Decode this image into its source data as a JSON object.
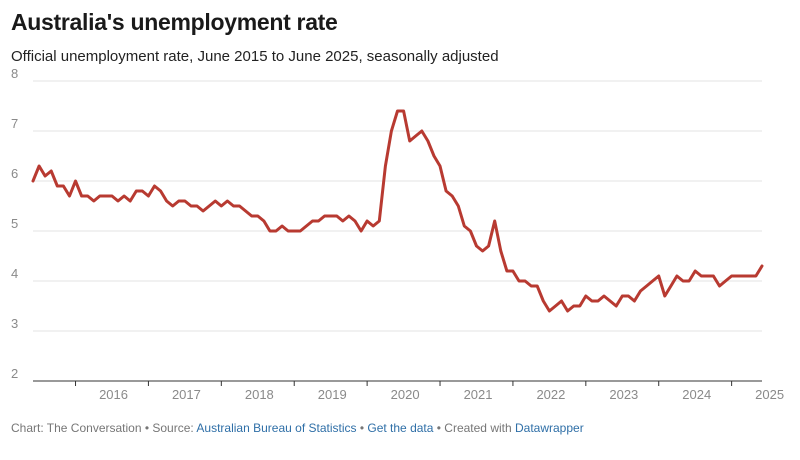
{
  "header": {
    "title": "Australia's unemployment rate",
    "subtitle": "Official unemployment rate, June 2015 to June 2025, seasonally adjusted"
  },
  "footer": {
    "chart_prefix": "Chart: The Conversation • Source: ",
    "source_link": "Australian Bureau of Statistics",
    "sep1": " • ",
    "data_link": "Get the data",
    "sep2": " • Created with ",
    "tool_link": "Datawrapper"
  },
  "colors": {
    "line": "#b83a31",
    "grid": "#e3e3e3",
    "axis": "#333333",
    "link": "#2f6fa7"
  },
  "chart_data": {
    "type": "line",
    "title": "Australia's unemployment rate",
    "subtitle": "Official unemployment rate, June 2015 to June 2025, seasonally adjusted",
    "xlabel": "",
    "ylabel": "",
    "ylim": [
      2,
      8
    ],
    "y_ticks": [
      2,
      3,
      4,
      5,
      6,
      7,
      8
    ],
    "x_ticks": [
      "2016",
      "2017",
      "2018",
      "2019",
      "2020",
      "2021",
      "2022",
      "2023",
      "2024",
      "2025"
    ],
    "xlim": [
      "2015-06",
      "2025-06"
    ],
    "grid": true,
    "series": [
      {
        "x": [
          "2015-06",
          "2015-07",
          "2015-08",
          "2015-09",
          "2015-10",
          "2015-11",
          "2015-12",
          "2016-01",
          "2016-02",
          "2016-03",
          "2016-04",
          "2016-05",
          "2016-06",
          "2016-07",
          "2016-08",
          "2016-09",
          "2016-10",
          "2016-11",
          "2016-12",
          "2017-01",
          "2017-02",
          "2017-03",
          "2017-04",
          "2017-05",
          "2017-06",
          "2017-07",
          "2017-08",
          "2017-09",
          "2017-10",
          "2017-11",
          "2017-12",
          "2018-01",
          "2018-02",
          "2018-03",
          "2018-04",
          "2018-05",
          "2018-06",
          "2018-07",
          "2018-08",
          "2018-09",
          "2018-10",
          "2018-11",
          "2018-12",
          "2019-01",
          "2019-02",
          "2019-03",
          "2019-04",
          "2019-05",
          "2019-06",
          "2019-07",
          "2019-08",
          "2019-09",
          "2019-10",
          "2019-11",
          "2019-12",
          "2020-01",
          "2020-02",
          "2020-03",
          "2020-04",
          "2020-05",
          "2020-06",
          "2020-07",
          "2020-08",
          "2020-09",
          "2020-10",
          "2020-11",
          "2020-12",
          "2021-01",
          "2021-02",
          "2021-03",
          "2021-04",
          "2021-05",
          "2021-06",
          "2021-07",
          "2021-08",
          "2021-09",
          "2021-10",
          "2021-11",
          "2021-12",
          "2022-01",
          "2022-02",
          "2022-03",
          "2022-04",
          "2022-05",
          "2022-06",
          "2022-07",
          "2022-08",
          "2022-09",
          "2022-10",
          "2022-11",
          "2022-12",
          "2023-01",
          "2023-02",
          "2023-03",
          "2023-04",
          "2023-05",
          "2023-06",
          "2023-07",
          "2023-08",
          "2023-09",
          "2023-10",
          "2023-11",
          "2023-12",
          "2024-01",
          "2024-02",
          "2024-03",
          "2024-04",
          "2024-05",
          "2024-06",
          "2024-07",
          "2024-08",
          "2024-09",
          "2024-10",
          "2024-11",
          "2024-12",
          "2025-01",
          "2025-02",
          "2025-03",
          "2025-04",
          "2025-05",
          "2025-06"
        ],
        "values": [
          6.0,
          6.3,
          6.1,
          6.2,
          5.9,
          5.9,
          5.7,
          6.0,
          5.7,
          5.7,
          5.6,
          5.7,
          5.7,
          5.7,
          5.6,
          5.7,
          5.6,
          5.8,
          5.8,
          5.7,
          5.9,
          5.8,
          5.6,
          5.5,
          5.6,
          5.6,
          5.5,
          5.5,
          5.4,
          5.5,
          5.6,
          5.5,
          5.6,
          5.5,
          5.5,
          5.4,
          5.3,
          5.3,
          5.2,
          5.0,
          5.0,
          5.1,
          5.0,
          5.0,
          5.0,
          5.1,
          5.2,
          5.2,
          5.3,
          5.3,
          5.3,
          5.2,
          5.3,
          5.2,
          5.0,
          5.2,
          5.1,
          5.2,
          6.3,
          7.0,
          7.4,
          7.4,
          6.8,
          6.9,
          7.0,
          6.8,
          6.5,
          6.3,
          5.8,
          5.7,
          5.5,
          5.1,
          5.0,
          4.7,
          4.6,
          4.7,
          5.2,
          4.6,
          4.2,
          4.2,
          4.0,
          4.0,
          3.9,
          3.9,
          3.6,
          3.4,
          3.5,
          3.6,
          3.4,
          3.5,
          3.5,
          3.7,
          3.6,
          3.6,
          3.7,
          3.6,
          3.5,
          3.7,
          3.7,
          3.6,
          3.8,
          3.9,
          4.0,
          4.1,
          3.7,
          3.9,
          4.1,
          4.0,
          4.0,
          4.2,
          4.1,
          4.1,
          4.1,
          3.9,
          4.0,
          4.1,
          4.1,
          4.1,
          4.1,
          4.1,
          4.3
        ]
      }
    ]
  }
}
